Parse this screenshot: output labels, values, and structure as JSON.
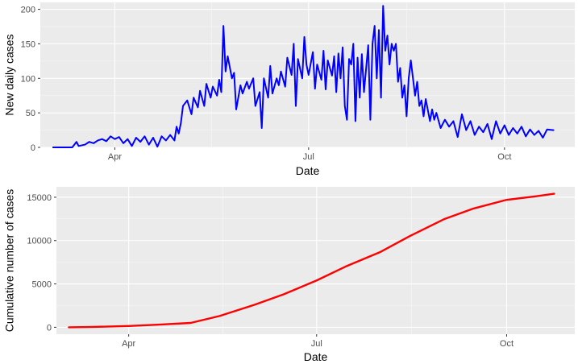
{
  "chart_data": [
    {
      "type": "line",
      "xlabel": "Date",
      "ylabel": "New daily cases",
      "ylim": [
        0,
        210
      ],
      "xlim": [
        "2020-02-26",
        "2020-11-03"
      ],
      "x_ticks": [
        {
          "date": "2020-04-01",
          "label": "Apr"
        },
        {
          "date": "2020-07-01",
          "label": "Jul"
        },
        {
          "date": "2020-10-01",
          "label": "Oct"
        }
      ],
      "y_ticks": [
        0,
        50,
        100,
        150,
        200
      ],
      "grid": true,
      "series": [
        {
          "color": "#0000ff",
          "points": [
            [
              "2020-03-03",
              0
            ],
            [
              "2020-03-12",
              0
            ],
            [
              "2020-03-14",
              8
            ],
            [
              "2020-03-15",
              2
            ],
            [
              "2020-03-18",
              4
            ],
            [
              "2020-03-20",
              8
            ],
            [
              "2020-03-22",
              6
            ],
            [
              "2020-03-24",
              10
            ],
            [
              "2020-03-26",
              12
            ],
            [
              "2020-03-28",
              9
            ],
            [
              "2020-03-30",
              16
            ],
            [
              "2020-04-01",
              12
            ],
            [
              "2020-04-03",
              15
            ],
            [
              "2020-04-05",
              6
            ],
            [
              "2020-04-07",
              12
            ],
            [
              "2020-04-09",
              2
            ],
            [
              "2020-04-11",
              14
            ],
            [
              "2020-04-13",
              8
            ],
            [
              "2020-04-15",
              16
            ],
            [
              "2020-04-17",
              4
            ],
            [
              "2020-04-19",
              14
            ],
            [
              "2020-04-21",
              1
            ],
            [
              "2020-04-23",
              16
            ],
            [
              "2020-04-25",
              10
            ],
            [
              "2020-04-27",
              18
            ],
            [
              "2020-04-29",
              10
            ],
            [
              "2020-04-30",
              30
            ],
            [
              "2020-05-01",
              20
            ],
            [
              "2020-05-02",
              35
            ],
            [
              "2020-05-03",
              60
            ],
            [
              "2020-05-05",
              68
            ],
            [
              "2020-05-07",
              48
            ],
            [
              "2020-05-08",
              72
            ],
            [
              "2020-05-10",
              58
            ],
            [
              "2020-05-11",
              82
            ],
            [
              "2020-05-13",
              60
            ],
            [
              "2020-05-14",
              92
            ],
            [
              "2020-05-16",
              72
            ],
            [
              "2020-05-17",
              88
            ],
            [
              "2020-05-19",
              75
            ],
            [
              "2020-05-20",
              98
            ],
            [
              "2020-05-21",
              80
            ],
            [
              "2020-05-22",
              176
            ],
            [
              "2020-05-23",
              110
            ],
            [
              "2020-05-24",
              132
            ],
            [
              "2020-05-26",
              100
            ],
            [
              "2020-05-27",
              108
            ],
            [
              "2020-05-28",
              55
            ],
            [
              "2020-05-30",
              90
            ],
            [
              "2020-05-31",
              78
            ],
            [
              "2020-06-02",
              95
            ],
            [
              "2020-06-03",
              85
            ],
            [
              "2020-06-05",
              100
            ],
            [
              "2020-06-06",
              60
            ],
            [
              "2020-06-08",
              80
            ],
            [
              "2020-06-09",
              28
            ],
            [
              "2020-06-10",
              100
            ],
            [
              "2020-06-12",
              72
            ],
            [
              "2020-06-13",
              118
            ],
            [
              "2020-06-14",
              78
            ],
            [
              "2020-06-16",
              100
            ],
            [
              "2020-06-17",
              90
            ],
            [
              "2020-06-18",
              110
            ],
            [
              "2020-06-20",
              88
            ],
            [
              "2020-06-21",
              130
            ],
            [
              "2020-06-23",
              105
            ],
            [
              "2020-06-24",
              150
            ],
            [
              "2020-06-25",
              60
            ],
            [
              "2020-06-26",
              128
            ],
            [
              "2020-06-28",
              100
            ],
            [
              "2020-06-29",
              160
            ],
            [
              "2020-06-30",
              120
            ],
            [
              "2020-07-01",
              105
            ],
            [
              "2020-07-03",
              138
            ],
            [
              "2020-07-04",
              85
            ],
            [
              "2020-07-05",
              120
            ],
            [
              "2020-07-07",
              98
            ],
            [
              "2020-07-08",
              140
            ],
            [
              "2020-07-09",
              84
            ],
            [
              "2020-07-10",
              126
            ],
            [
              "2020-07-12",
              104
            ],
            [
              "2020-07-13",
              132
            ],
            [
              "2020-07-14",
              80
            ],
            [
              "2020-07-15",
              136
            ],
            [
              "2020-07-16",
              100
            ],
            [
              "2020-07-17",
              145
            ],
            [
              "2020-07-18",
              60
            ],
            [
              "2020-07-19",
              40
            ],
            [
              "2020-07-20",
              128
            ],
            [
              "2020-07-21",
              120
            ],
            [
              "2020-07-22",
              150
            ],
            [
              "2020-07-23",
              38
            ],
            [
              "2020-07-24",
              130
            ],
            [
              "2020-07-25",
              72
            ],
            [
              "2020-07-26",
              135
            ],
            [
              "2020-07-27",
              80
            ],
            [
              "2020-07-29",
              148
            ],
            [
              "2020-07-30",
              40
            ],
            [
              "2020-07-31",
              150
            ],
            [
              "2020-08-01",
              176
            ],
            [
              "2020-08-02",
              100
            ],
            [
              "2020-08-03",
              170
            ],
            [
              "2020-08-04",
              72
            ],
            [
              "2020-08-05",
              205
            ],
            [
              "2020-08-06",
              140
            ],
            [
              "2020-08-07",
              162
            ],
            [
              "2020-08-08",
              120
            ],
            [
              "2020-08-09",
              150
            ],
            [
              "2020-08-10",
              140
            ],
            [
              "2020-08-11",
              150
            ],
            [
              "2020-08-12",
              95
            ],
            [
              "2020-08-13",
              115
            ],
            [
              "2020-08-14",
              72
            ],
            [
              "2020-08-15",
              90
            ],
            [
              "2020-08-16",
              45
            ],
            [
              "2020-08-17",
              100
            ],
            [
              "2020-08-18",
              126
            ],
            [
              "2020-08-20",
              75
            ],
            [
              "2020-08-21",
              95
            ],
            [
              "2020-08-22",
              60
            ],
            [
              "2020-08-23",
              68
            ],
            [
              "2020-08-24",
              45
            ],
            [
              "2020-08-25",
              70
            ],
            [
              "2020-08-27",
              38
            ],
            [
              "2020-08-28",
              55
            ],
            [
              "2020-08-29",
              40
            ],
            [
              "2020-08-30",
              50
            ],
            [
              "2020-09-01",
              28
            ],
            [
              "2020-09-03",
              40
            ],
            [
              "2020-09-05",
              30
            ],
            [
              "2020-09-07",
              38
            ],
            [
              "2020-09-09",
              15
            ],
            [
              "2020-09-11",
              48
            ],
            [
              "2020-09-13",
              25
            ],
            [
              "2020-09-15",
              38
            ],
            [
              "2020-09-17",
              18
            ],
            [
              "2020-09-19",
              30
            ],
            [
              "2020-09-21",
              22
            ],
            [
              "2020-09-23",
              34
            ],
            [
              "2020-09-25",
              12
            ],
            [
              "2020-09-27",
              38
            ],
            [
              "2020-09-29",
              20
            ],
            [
              "2020-10-01",
              32
            ],
            [
              "2020-10-03",
              18
            ],
            [
              "2020-10-05",
              28
            ],
            [
              "2020-10-07",
              20
            ],
            [
              "2020-10-09",
              30
            ],
            [
              "2020-10-11",
              16
            ],
            [
              "2020-10-13",
              26
            ],
            [
              "2020-10-15",
              18
            ],
            [
              "2020-10-17",
              24
            ],
            [
              "2020-10-19",
              14
            ],
            [
              "2020-10-21",
              26
            ],
            [
              "2020-10-24",
              25
            ]
          ]
        }
      ]
    },
    {
      "type": "line",
      "xlabel": "Date",
      "ylabel": "Cumulative number of cases",
      "ylim": [
        -800,
        16200
      ],
      "xlim": [
        "2020-02-26",
        "2020-11-03"
      ],
      "x_ticks": [
        {
          "date": "2020-04-01",
          "label": "Apr"
        },
        {
          "date": "2020-07-01",
          "label": "Jul"
        },
        {
          "date": "2020-10-01",
          "label": "Oct"
        }
      ],
      "y_ticks": [
        0,
        5000,
        10000,
        15000
      ],
      "grid": true,
      "series": [
        {
          "color": "#ff0000",
          "points": [
            [
              "2020-03-03",
              0
            ],
            [
              "2020-03-15",
              40
            ],
            [
              "2020-04-01",
              150
            ],
            [
              "2020-04-15",
              300
            ],
            [
              "2020-05-01",
              500
            ],
            [
              "2020-05-15",
              1300
            ],
            [
              "2020-06-01",
              2600
            ],
            [
              "2020-06-15",
              3800
            ],
            [
              "2020-07-01",
              5400
            ],
            [
              "2020-07-15",
              7000
            ],
            [
              "2020-08-01",
              8700
            ],
            [
              "2020-08-15",
              10500
            ],
            [
              "2020-09-01",
              12500
            ],
            [
              "2020-09-15",
              13700
            ],
            [
              "2020-10-01",
              14700
            ],
            [
              "2020-10-15",
              15100
            ],
            [
              "2020-10-24",
              15400
            ]
          ]
        }
      ]
    }
  ]
}
